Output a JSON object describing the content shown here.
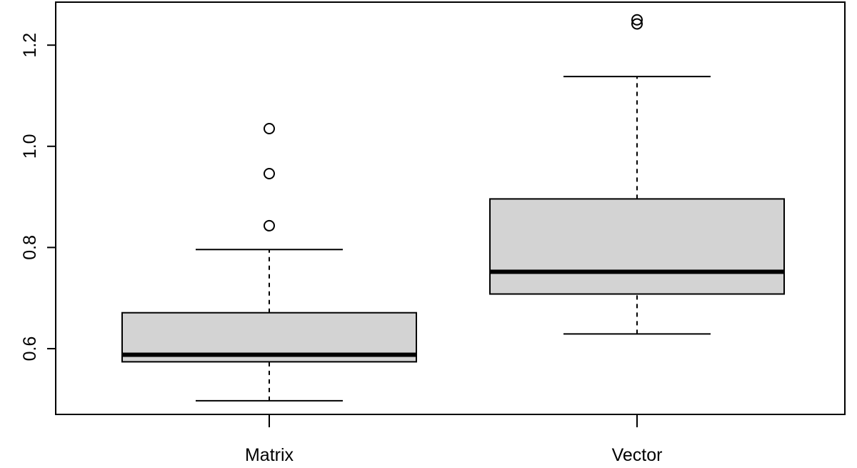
{
  "chart_data": {
    "type": "boxplot",
    "categories": [
      "Matrix",
      "Vector"
    ],
    "boxes": [
      {
        "category": "Matrix",
        "whisker_low": 0.497,
        "q1": 0.574,
        "median": 0.588,
        "q3": 0.671,
        "whisker_high": 0.796,
        "outliers": [
          0.843,
          0.946,
          1.035
        ]
      },
      {
        "category": "Vector",
        "whisker_low": 0.629,
        "q1": 0.708,
        "median": 0.752,
        "q3": 0.896,
        "whisker_high": 1.138,
        "outliers": [
          1.242,
          1.25
        ]
      }
    ],
    "y_ticks": [
      0.6,
      0.8,
      1.0,
      1.2
    ],
    "y_tick_labels": [
      "0.6",
      "0.8",
      "1.0",
      "1.2"
    ],
    "ylim": [
      0.47,
      1.285
    ],
    "box_fill": "#d3d3d3",
    "line_color": "#000000",
    "grid": false,
    "title": "",
    "xlabel": "",
    "ylabel": ""
  }
}
